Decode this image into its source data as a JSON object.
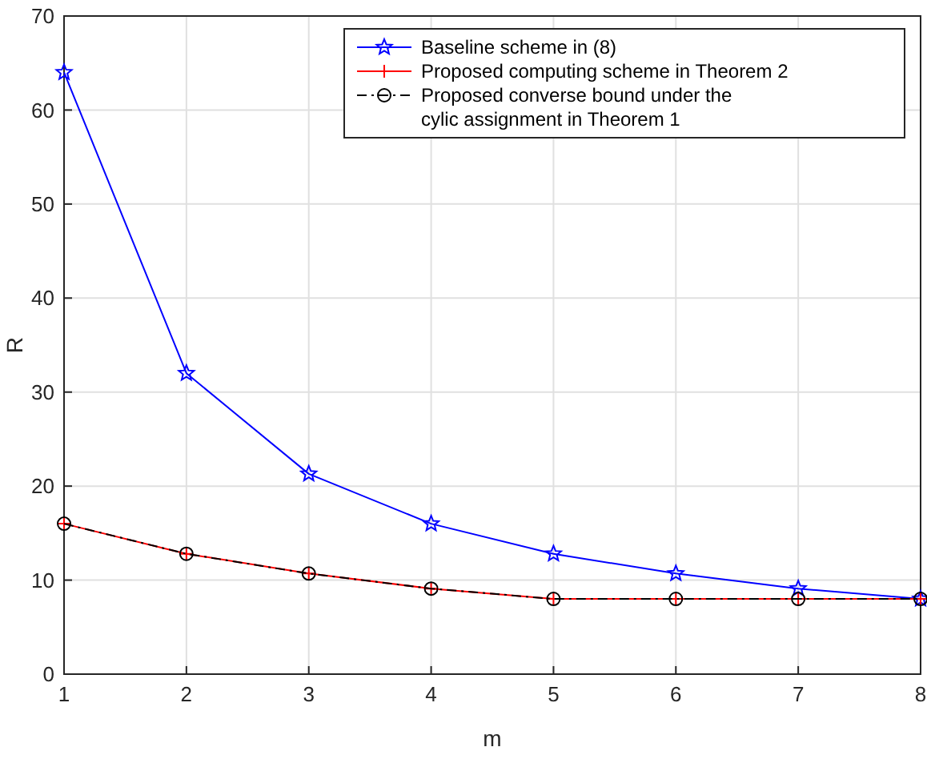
{
  "chart_data": {
    "type": "line",
    "xlabel": "m",
    "ylabel": "R",
    "x": [
      1,
      2,
      3,
      4,
      5,
      6,
      7,
      8
    ],
    "xlim": [
      1,
      8
    ],
    "xticks": [
      1,
      2,
      3,
      4,
      5,
      6,
      7,
      8
    ],
    "ylim": [
      0,
      70
    ],
    "yticks": [
      0,
      10,
      20,
      30,
      40,
      50,
      60,
      70
    ],
    "grid": true,
    "legend": "top right",
    "series": [
      {
        "name": "Baseline scheme in (8)",
        "color": "#0000ff",
        "marker": "star",
        "line_style": "solid",
        "values": [
          64,
          32,
          21.3,
          16,
          12.8,
          10.7,
          9.1,
          8
        ]
      },
      {
        "name": "Proposed computing scheme in Theorem 2",
        "color": "#ff0000",
        "marker": "cross",
        "line_style": "solid",
        "values": [
          16,
          12.8,
          10.7,
          9.1,
          8,
          8,
          8,
          8
        ]
      },
      {
        "name": "Proposed converse bound under the cylic assignment in Theorem 1",
        "color": "#000000",
        "marker": "circle",
        "line_style": "dashed",
        "values": [
          16,
          12.8,
          10.7,
          9.1,
          8,
          8,
          8,
          8
        ]
      }
    ]
  }
}
